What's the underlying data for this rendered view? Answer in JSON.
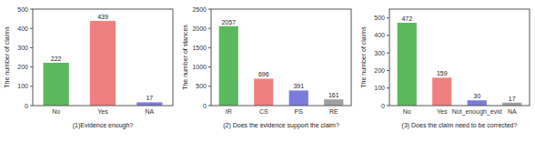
{
  "chart_data": [
    {
      "type": "bar",
      "categories": [
        "No",
        "Yes",
        "NA"
      ],
      "values": [
        222,
        439,
        17
      ],
      "colors": [
        "#5cb85c",
        "#f08080",
        "#7b7bdb"
      ],
      "xlabel": "(1)Evidence enough?",
      "ylabel": "The number of claims",
      "ylim": [
        0,
        500
      ],
      "yticks": [
        0,
        100,
        200,
        300,
        400,
        500
      ],
      "data_labels": true,
      "grid": false
    },
    {
      "type": "bar",
      "categories": [
        "IR",
        "CS",
        "PS",
        "RE"
      ],
      "values": [
        2057,
        696,
        391,
        161
      ],
      "colors": [
        "#5cb85c",
        "#f08080",
        "#7b7bdb",
        "#a0a0a0"
      ],
      "xlabel": "(2) Does the evidence support the claim?",
      "ylabel": "The number of stances",
      "ylim": [
        0,
        2500
      ],
      "yticks": [
        0,
        500,
        1000,
        1500,
        2000,
        2500
      ],
      "data_labels": true,
      "grid": false
    },
    {
      "type": "bar",
      "categories": [
        "No",
        "Yes",
        "Not_enough_evid",
        "NA"
      ],
      "values": [
        472,
        159,
        30,
        17
      ],
      "colors": [
        "#5cb85c",
        "#f08080",
        "#7b7bdb",
        "#a0a0a0"
      ],
      "xlabel": "(3) Does the claim need to be corrected?",
      "ylabel": "The number of claims",
      "ylim": [
        0,
        550
      ],
      "yticks": [
        0,
        100,
        200,
        300,
        400,
        500
      ],
      "data_labels": true,
      "grid": false
    }
  ]
}
